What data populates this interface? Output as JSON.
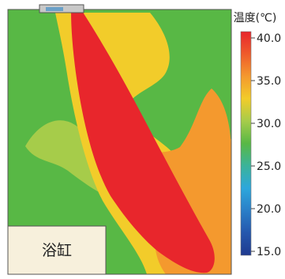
{
  "chart_data": {
    "type": "heatmap",
    "title": "",
    "legend": {
      "title": "温度(℃)",
      "placement": "right",
      "ticks": [
        40.0,
        35.0,
        30.0,
        25.0,
        20.0,
        15.0
      ],
      "tick_labels": [
        "40.0",
        "35.0",
        "30.0",
        "25.0",
        "20.0",
        "15.0"
      ],
      "range": [
        15.0,
        40.0
      ]
    },
    "colorscale": [
      {
        "value": 40.0,
        "color": "#e8262c"
      },
      {
        "value": 37.5,
        "color": "#ef5b2b"
      },
      {
        "value": 35.0,
        "color": "#f4992e"
      },
      {
        "value": 32.5,
        "color": "#f2cc2a"
      },
      {
        "value": 30.0,
        "color": "#a6cc4a"
      },
      {
        "value": 27.5,
        "color": "#58b845"
      },
      {
        "value": 25.0,
        "color": "#3bb39a"
      },
      {
        "value": 22.5,
        "color": "#2ca7dc"
      },
      {
        "value": 20.0,
        "color": "#2a7fc8"
      },
      {
        "value": 17.5,
        "color": "#2457ad"
      },
      {
        "value": 15.0,
        "color": "#1f3a8f"
      }
    ],
    "field_background_temperature": 27.5,
    "zones": [
      {
        "name": "plume",
        "temperature": 40.0
      },
      {
        "name": "warm-lobe",
        "temperature": 35.0
      },
      {
        "name": "mild-region",
        "temperature": 32.5
      },
      {
        "name": "mild-left-band",
        "temperature": 30.0
      }
    ],
    "objects": {
      "bathtub_label": "浴缸"
    }
  }
}
